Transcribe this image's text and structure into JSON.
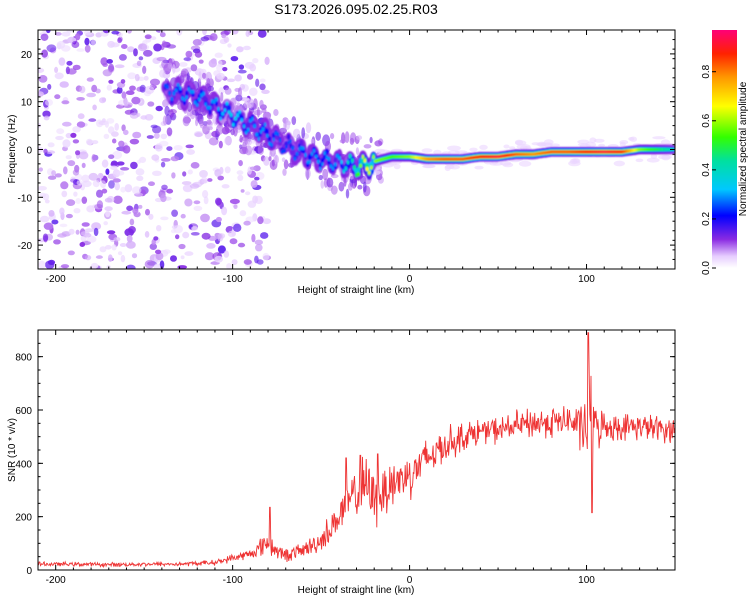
{
  "figure_title": "S173.2026.095.02.25.R03",
  "chart_data": [
    {
      "type": "heatmap",
      "title": "",
      "xlabel": "Height of straight line (km)",
      "ylabel": "Frequency (Hz)",
      "xlim": [
        -210,
        150
      ],
      "ylim": [
        -25,
        25
      ],
      "xticks": [
        -200,
        -100,
        0,
        100
      ],
      "yticks": [
        -20,
        -10,
        0,
        10,
        20
      ],
      "colorbar": {
        "label": "Normalized spectral amplitude",
        "range": [
          0.0,
          0.97
        ],
        "ticks": [
          0.0,
          0.2,
          0.4,
          0.6,
          0.8
        ],
        "tick_labels": [
          "0.0",
          "0.2",
          "0.4",
          "0.6",
          "0.8"
        ]
      },
      "ridge": {
        "x": [
          -140,
          -130,
          -120,
          -110,
          -100,
          -90,
          -80,
          -70,
          -60,
          -50,
          -40,
          -30,
          -25,
          -20,
          -10,
          0,
          10,
          20,
          30,
          40,
          50,
          60,
          70,
          80,
          90,
          100,
          110,
          120,
          130,
          140,
          150
        ],
        "frequency": [
          12,
          12,
          11,
          9,
          7,
          5,
          3,
          1,
          -1,
          -2,
          -3,
          -3.5,
          -3.5,
          -2.5,
          -1.5,
          -1.5,
          -2,
          -2,
          -2,
          -1.5,
          -1.5,
          -1,
          -1,
          -0.5,
          -0.5,
          -0.5,
          -0.5,
          -0.5,
          0,
          0,
          0
        ],
        "amplitude": [
          0.25,
          0.3,
          0.3,
          0.3,
          0.35,
          0.3,
          0.3,
          0.25,
          0.3,
          0.3,
          0.3,
          0.5,
          0.7,
          0.6,
          0.55,
          0.6,
          0.8,
          0.85,
          0.85,
          0.9,
          0.95,
          0.85,
          0.8,
          0.85,
          0.85,
          0.9,
          0.95,
          0.9,
          0.6,
          0.5,
          0.4
        ]
      }
    },
    {
      "type": "line",
      "title": "",
      "xlabel": "Height of straight line (km)",
      "ylabel": "SNR (10 * v/v)",
      "xlim": [
        -210,
        150
      ],
      "ylim": [
        0,
        900
      ],
      "xticks": [
        -200,
        -100,
        0,
        100
      ],
      "yticks": [
        0,
        200,
        400,
        600,
        800
      ],
      "color": "#ee3333",
      "series": [
        {
          "name": "SNR",
          "x": [
            -210,
            -190,
            -170,
            -150,
            -130,
            -110,
            -100,
            -90,
            -85,
            -80,
            -75,
            -70,
            -60,
            -50,
            -40,
            -35,
            -30,
            -25,
            -20,
            -15,
            -10,
            -5,
            0,
            10,
            20,
            30,
            40,
            50,
            60,
            70,
            80,
            90,
            95,
            100,
            102,
            105,
            110,
            120,
            130,
            140,
            150
          ],
          "y": [
            22,
            22,
            20,
            22,
            22,
            28,
            45,
            60,
            80,
            110,
            70,
            55,
            75,
            110,
            200,
            250,
            290,
            320,
            260,
            290,
            330,
            340,
            360,
            420,
            470,
            500,
            520,
            525,
            540,
            550,
            555,
            560,
            545,
            520,
            600,
            530,
            540,
            535,
            540,
            530,
            525
          ],
          "noise": [
            8,
            8,
            8,
            8,
            8,
            10,
            15,
            20,
            30,
            60,
            30,
            25,
            30,
            45,
            70,
            90,
            100,
            110,
            110,
            100,
            110,
            100,
            90,
            80,
            70,
            55,
            50,
            50,
            55,
            60,
            60,
            60,
            70,
            150,
            200,
            90,
            55,
            50,
            50,
            50,
            50
          ],
          "spikes": [
            {
              "x": -79,
              "y": 235
            },
            {
              "x": -36,
              "y": 420
            },
            {
              "x": -28,
              "y": 430
            },
            {
              "x": -18,
              "y": 435
            },
            {
              "x": 101,
              "y": 890
            },
            {
              "x": 103,
              "y": 215
            }
          ]
        }
      ]
    }
  ]
}
